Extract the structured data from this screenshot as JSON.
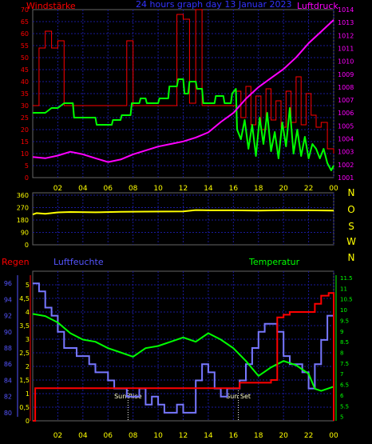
{
  "header": {
    "left_label": "Windstärke",
    "title": "24 hours graph day  13 Januar 2023",
    "right_label": "Luftdruck"
  },
  "colors": {
    "background": "#000000",
    "plot_background": "#000000",
    "grid": "#1a1a99",
    "tick_x": "#ffff00",
    "wind_axis": "#ff0000",
    "pressure_axis": "#ff00ff",
    "humidity_axis": "#5555ff",
    "temp_axis": "#00ff00",
    "winddir_axis": "#ffff00"
  },
  "chart_data": [
    {
      "id": "wind_pressure",
      "type": "line",
      "left_axis_label": "Windstärke",
      "right_axis_label": "Luftdruck",
      "xlim": [
        0,
        24
      ],
      "x_ticks": [
        "02",
        "04",
        "06",
        "08",
        "10",
        "12",
        "14",
        "16",
        "18",
        "20",
        "22",
        "00"
      ],
      "left_ylim": [
        0,
        70
      ],
      "left_ticks": [
        "0",
        "5",
        "10",
        "15",
        "20",
        "25",
        "30",
        "35",
        "40",
        "45",
        "50",
        "55",
        "60",
        "65",
        "70"
      ],
      "right_ylim": [
        1001,
        1014
      ],
      "right_ticks": [
        "1001",
        "1002",
        "1003",
        "1004",
        "1005",
        "1006",
        "1007",
        "1008",
        "1009",
        "1010",
        "1011",
        "1012",
        "1013",
        "1014"
      ],
      "gust_color": "#ff0000",
      "gust": [
        [
          0,
          30
        ],
        [
          0.5,
          54
        ],
        [
          1,
          61
        ],
        [
          1.5,
          54
        ],
        [
          2,
          57
        ],
        [
          2.5,
          30
        ],
        [
          7.2,
          30
        ],
        [
          7.5,
          57
        ],
        [
          8,
          30
        ],
        [
          11,
          30
        ],
        [
          11.5,
          68
        ],
        [
          12,
          66
        ],
        [
          12.5,
          31
        ],
        [
          13,
          70
        ],
        [
          13.5,
          30
        ],
        [
          16,
          30
        ],
        [
          16.2,
          36
        ],
        [
          16.6,
          25
        ],
        [
          17,
          38
        ],
        [
          17.4,
          22
        ],
        [
          17.8,
          34
        ],
        [
          18.2,
          20
        ],
        [
          18.6,
          37
        ],
        [
          19,
          24
        ],
        [
          19.4,
          32
        ],
        [
          19.8,
          21
        ],
        [
          20.2,
          36
        ],
        [
          20.6,
          23
        ],
        [
          21,
          42
        ],
        [
          21.4,
          22
        ],
        [
          21.8,
          35
        ],
        [
          22.2,
          26
        ],
        [
          22.6,
          21
        ],
        [
          23,
          23
        ],
        [
          23.5,
          12
        ],
        [
          24,
          10
        ]
      ],
      "wind_color": "#00ff00",
      "wind": [
        [
          0,
          27
        ],
        [
          1,
          27
        ],
        [
          1.5,
          29
        ],
        [
          2,
          29
        ],
        [
          2.5,
          31
        ],
        [
          3.2,
          31
        ],
        [
          3.3,
          25
        ],
        [
          5,
          25
        ],
        [
          5.1,
          22
        ],
        [
          6.3,
          22
        ],
        [
          6.4,
          24
        ],
        [
          7,
          24
        ],
        [
          7.1,
          26
        ],
        [
          7.8,
          26
        ],
        [
          7.9,
          31
        ],
        [
          8.5,
          31
        ],
        [
          8.6,
          33
        ],
        [
          9,
          33
        ],
        [
          9.1,
          31
        ],
        [
          10,
          31
        ],
        [
          10.1,
          33
        ],
        [
          10.8,
          33
        ],
        [
          10.9,
          38
        ],
        [
          11.5,
          38
        ],
        [
          11.6,
          41
        ],
        [
          12,
          41
        ],
        [
          12.1,
          35
        ],
        [
          12.4,
          35
        ],
        [
          12.5,
          40
        ],
        [
          13,
          40
        ],
        [
          13.1,
          37
        ],
        [
          13.5,
          37
        ],
        [
          13.6,
          31
        ],
        [
          14.5,
          31
        ],
        [
          14.6,
          34
        ],
        [
          15.2,
          34
        ],
        [
          15.3,
          31
        ],
        [
          15.8,
          31
        ],
        [
          15.9,
          35
        ],
        [
          16.2,
          37
        ],
        [
          16.3,
          20
        ],
        [
          16.6,
          16
        ],
        [
          16.9,
          24
        ],
        [
          17.2,
          12
        ],
        [
          17.5,
          22
        ],
        [
          17.8,
          9
        ],
        [
          18.1,
          25
        ],
        [
          18.4,
          14
        ],
        [
          18.7,
          27
        ],
        [
          19,
          11
        ],
        [
          19.3,
          19
        ],
        [
          19.6,
          8
        ],
        [
          19.9,
          23
        ],
        [
          20.2,
          13
        ],
        [
          20.5,
          29
        ],
        [
          20.8,
          10
        ],
        [
          21.1,
          20
        ],
        [
          21.4,
          9
        ],
        [
          21.7,
          17
        ],
        [
          22,
          8
        ],
        [
          22.3,
          14
        ],
        [
          22.6,
          12
        ],
        [
          22.9,
          8
        ],
        [
          23.2,
          12
        ],
        [
          23.5,
          6
        ],
        [
          23.8,
          3
        ],
        [
          24,
          5
        ]
      ],
      "pressure_color": "#ff00ff",
      "pressure": [
        [
          0,
          1002.6
        ],
        [
          1,
          1002.5
        ],
        [
          2,
          1002.7
        ],
        [
          3,
          1003.0
        ],
        [
          4,
          1002.8
        ],
        [
          5,
          1002.5
        ],
        [
          6,
          1002.2
        ],
        [
          7,
          1002.4
        ],
        [
          8,
          1002.8
        ],
        [
          9,
          1003.1
        ],
        [
          10,
          1003.4
        ],
        [
          11,
          1003.6
        ],
        [
          12,
          1003.8
        ],
        [
          13,
          1004.1
        ],
        [
          14,
          1004.5
        ],
        [
          15,
          1005.3
        ],
        [
          16,
          1006.0
        ],
        [
          17,
          1007.1
        ],
        [
          18,
          1008.0
        ],
        [
          19,
          1008.7
        ],
        [
          20,
          1009.4
        ],
        [
          21,
          1010.3
        ],
        [
          22,
          1011.4
        ],
        [
          23,
          1012.3
        ],
        [
          24,
          1013.2
        ]
      ]
    },
    {
      "id": "wind_direction",
      "type": "line",
      "xlim": [
        0,
        24
      ],
      "ylim": [
        0,
        360
      ],
      "left_ticks": [
        "0",
        "90",
        "180",
        "270",
        "360"
      ],
      "right_ticks": [
        "N",
        "W",
        "S",
        "O",
        "N"
      ],
      "color": "#ffff00",
      "values": [
        [
          0,
          220
        ],
        [
          0.3,
          230
        ],
        [
          1,
          225
        ],
        [
          2,
          235
        ],
        [
          3,
          238
        ],
        [
          5,
          236
        ],
        [
          7,
          240
        ],
        [
          9,
          241
        ],
        [
          12,
          242
        ],
        [
          13,
          252
        ],
        [
          14,
          250
        ],
        [
          16,
          250
        ],
        [
          18,
          248
        ],
        [
          20,
          251
        ],
        [
          22,
          250
        ],
        [
          24,
          248
        ]
      ]
    },
    {
      "id": "rain_humidity_temperature",
      "type": "line",
      "left_axis_label": "Regen",
      "center_label": "Luftfeuchte",
      "right_axis_label": "Temperatur",
      "xlim": [
        0,
        24
      ],
      "x_ticks": [
        "02",
        "04",
        "06",
        "08",
        "10",
        "12",
        "14",
        "16",
        "18",
        "20",
        "22",
        "00"
      ],
      "rain_ylim": [
        0,
        5.5
      ],
      "rain_ticks": [
        "0",
        "0,5",
        "1",
        "1,5",
        "2",
        "2,5",
        "3",
        "3,5",
        "4",
        "4,5",
        "5"
      ],
      "humidity_ylim": [
        79,
        97.5
      ],
      "humidity_ticks": [
        "80",
        "82",
        "84",
        "86",
        "88",
        "90",
        "92",
        "94",
        "96"
      ],
      "temp_ylim": [
        4.8,
        11.8
      ],
      "temp_ticks": [
        "5",
        "5.5",
        "6",
        "6.5",
        "7",
        "7.5",
        "8",
        "8.5",
        "9",
        "9.5",
        "10",
        "10.5",
        "11",
        "11.5"
      ],
      "annotations": [
        {
          "x": 7.6,
          "text": "Sun Rise"
        },
        {
          "x": 16.4,
          "text": "Sun Set"
        }
      ],
      "rain_color": "#ff0000",
      "rain": [
        [
          0,
          0
        ],
        [
          0.2,
          1.2
        ],
        [
          16.3,
          1.2
        ],
        [
          16.5,
          1.4
        ],
        [
          18.5,
          1.4
        ],
        [
          19,
          1.5
        ],
        [
          19.5,
          3.8
        ],
        [
          20,
          3.9
        ],
        [
          20.5,
          4.0
        ],
        [
          22,
          4.0
        ],
        [
          22.5,
          4.3
        ],
        [
          23,
          4.6
        ],
        [
          23.6,
          4.7
        ],
        [
          24,
          4.7
        ],
        [
          24,
          0
        ]
      ],
      "humidity_color": "#7777ff",
      "humidity": [
        [
          0,
          96
        ],
        [
          0.5,
          95
        ],
        [
          1,
          93
        ],
        [
          1.5,
          92
        ],
        [
          2,
          90
        ],
        [
          2.5,
          88
        ],
        [
          3,
          88
        ],
        [
          3.5,
          87
        ],
        [
          4,
          87
        ],
        [
          4.5,
          86
        ],
        [
          5,
          85
        ],
        [
          5.5,
          85
        ],
        [
          6,
          84
        ],
        [
          6.5,
          83
        ],
        [
          7,
          83
        ],
        [
          7.5,
          82
        ],
        [
          8,
          82
        ],
        [
          8.5,
          83
        ],
        [
          9,
          81
        ],
        [
          9.5,
          82
        ],
        [
          10,
          81
        ],
        [
          10.5,
          80
        ],
        [
          11,
          80
        ],
        [
          11.5,
          81
        ],
        [
          12,
          80
        ],
        [
          12.5,
          80
        ],
        [
          13,
          84
        ],
        [
          13.5,
          86
        ],
        [
          14,
          85
        ],
        [
          14.5,
          83
        ],
        [
          15,
          82
        ],
        [
          15.5,
          83
        ],
        [
          16,
          83
        ],
        [
          16.5,
          84
        ],
        [
          17,
          86
        ],
        [
          17.5,
          88
        ],
        [
          18,
          90
        ],
        [
          18.5,
          91
        ],
        [
          19,
          91
        ],
        [
          19.5,
          90
        ],
        [
          20,
          87
        ],
        [
          20.5,
          86
        ],
        [
          21,
          86
        ],
        [
          21.5,
          85
        ],
        [
          22,
          83
        ],
        [
          22.5,
          86
        ],
        [
          23,
          89
        ],
        [
          23.5,
          92
        ],
        [
          24,
          90
        ]
      ],
      "temp_color": "#00ff00",
      "temperature": [
        [
          0,
          9.8
        ],
        [
          1,
          9.7
        ],
        [
          2,
          9.4
        ],
        [
          3,
          8.9
        ],
        [
          4,
          8.6
        ],
        [
          5,
          8.5
        ],
        [
          6,
          8.2
        ],
        [
          7,
          8.0
        ],
        [
          8,
          7.8
        ],
        [
          9,
          8.2
        ],
        [
          10,
          8.3
        ],
        [
          11,
          8.5
        ],
        [
          12,
          8.7
        ],
        [
          13,
          8.5
        ],
        [
          14,
          8.9
        ],
        [
          15,
          8.6
        ],
        [
          16,
          8.2
        ],
        [
          17,
          7.6
        ],
        [
          18,
          6.9
        ],
        [
          19,
          7.3
        ],
        [
          20,
          7.6
        ],
        [
          21,
          7.4
        ],
        [
          22,
          7.0
        ],
        [
          22.5,
          6.3
        ],
        [
          23,
          6.2
        ],
        [
          24,
          6.4
        ]
      ]
    }
  ]
}
